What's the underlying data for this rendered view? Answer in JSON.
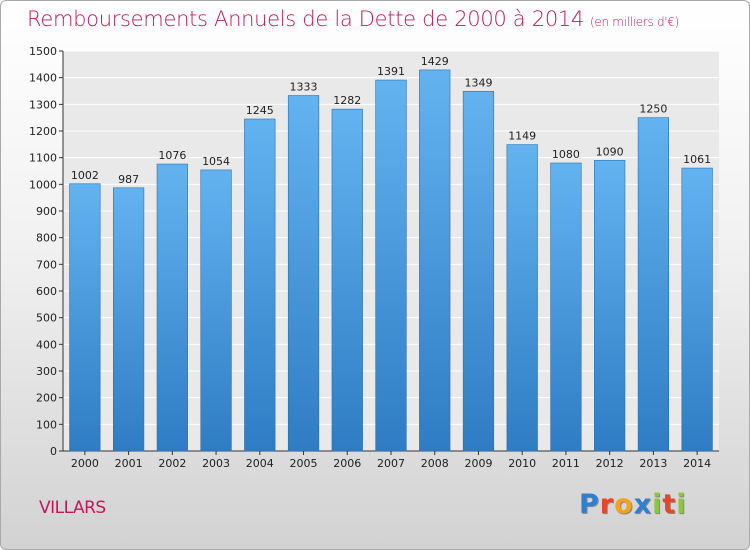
{
  "chart_data": {
    "type": "bar",
    "title": "Remboursements Annuels de la Dette de 2000 à 2014",
    "subtitle": "(en milliers d'€)",
    "categories": [
      "2000",
      "2001",
      "2002",
      "2003",
      "2004",
      "2005",
      "2006",
      "2007",
      "2008",
      "2009",
      "2010",
      "2011",
      "2012",
      "2013",
      "2014"
    ],
    "values": [
      1002,
      987,
      1076,
      1054,
      1245,
      1333,
      1282,
      1391,
      1429,
      1349,
      1149,
      1080,
      1090,
      1250,
      1061
    ],
    "ylim": [
      0,
      1500
    ],
    "ytick_step": 100,
    "grid": true,
    "xlabel": "",
    "ylabel": "",
    "bar_color": "#4a9fe0"
  },
  "commune": "VILLARS",
  "logo": {
    "letters": [
      "P",
      "r",
      "o",
      "x",
      "i",
      "t",
      "i"
    ],
    "colors": [
      "#2f7fd0",
      "#e8462a",
      "#f2a31b",
      "#2f7fd0",
      "#8cc63f",
      "#e8462a",
      "#8cc63f"
    ]
  }
}
